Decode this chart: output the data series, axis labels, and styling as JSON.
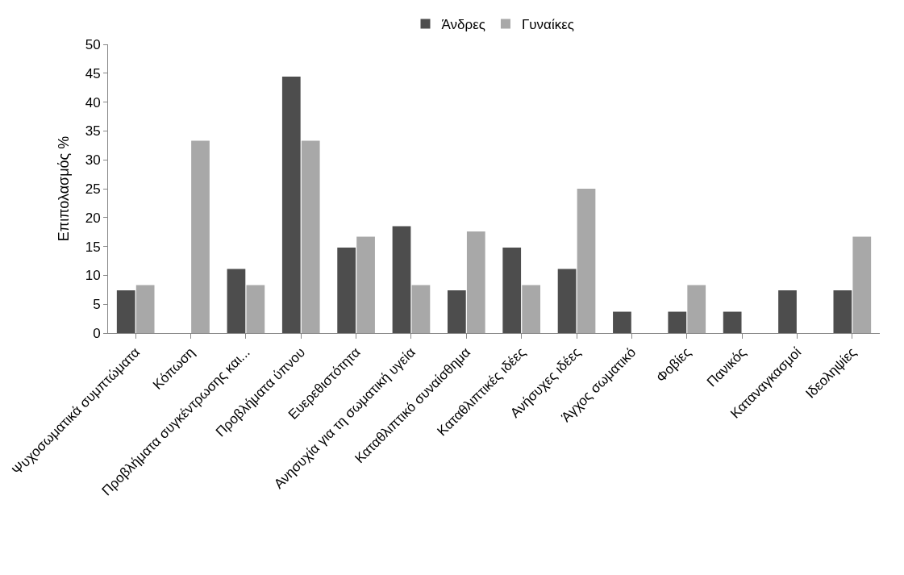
{
  "chart_data": {
    "type": "bar",
    "ylabel": "Επιπολασμός %",
    "categories": [
      "Ψυχοσωματικά συμπτώματα",
      "Κόπωση",
      "Προβλήματα συγκέντρωσης και...",
      "Προβλήματα ύπνου",
      "Ευερεθιστότητα",
      "Ανησυχία για τη σωματική υγεία",
      "Καταθλιπτικό συναίσθημα",
      "Καταθλιπτικές ιδέες",
      "Ανήσυχες ιδέες",
      "Άγχος σωματικό",
      "Φοβίες",
      "Πανικός",
      "Καταναγκασμοί",
      "Ιδεοληψίες"
    ],
    "series": [
      {
        "name": "Άνδρες",
        "color": "#4d4d4d",
        "values": [
          7.4,
          0,
          11.1,
          44.4,
          14.8,
          18.5,
          7.4,
          14.8,
          11.1,
          3.7,
          3.7,
          3.7,
          7.4,
          7.4
        ]
      },
      {
        "name": "Γυναίκες",
        "color": "#a8a8a8",
        "values": [
          8.3,
          33.3,
          8.3,
          33.3,
          16.7,
          8.3,
          17.6,
          8.3,
          25,
          0,
          8.3,
          0,
          0,
          16.7
        ]
      }
    ],
    "ylim": [
      0,
      50
    ],
    "yticks": [
      0,
      5,
      10,
      15,
      20,
      25,
      30,
      35,
      40,
      45,
      50
    ],
    "legend": "top"
  }
}
